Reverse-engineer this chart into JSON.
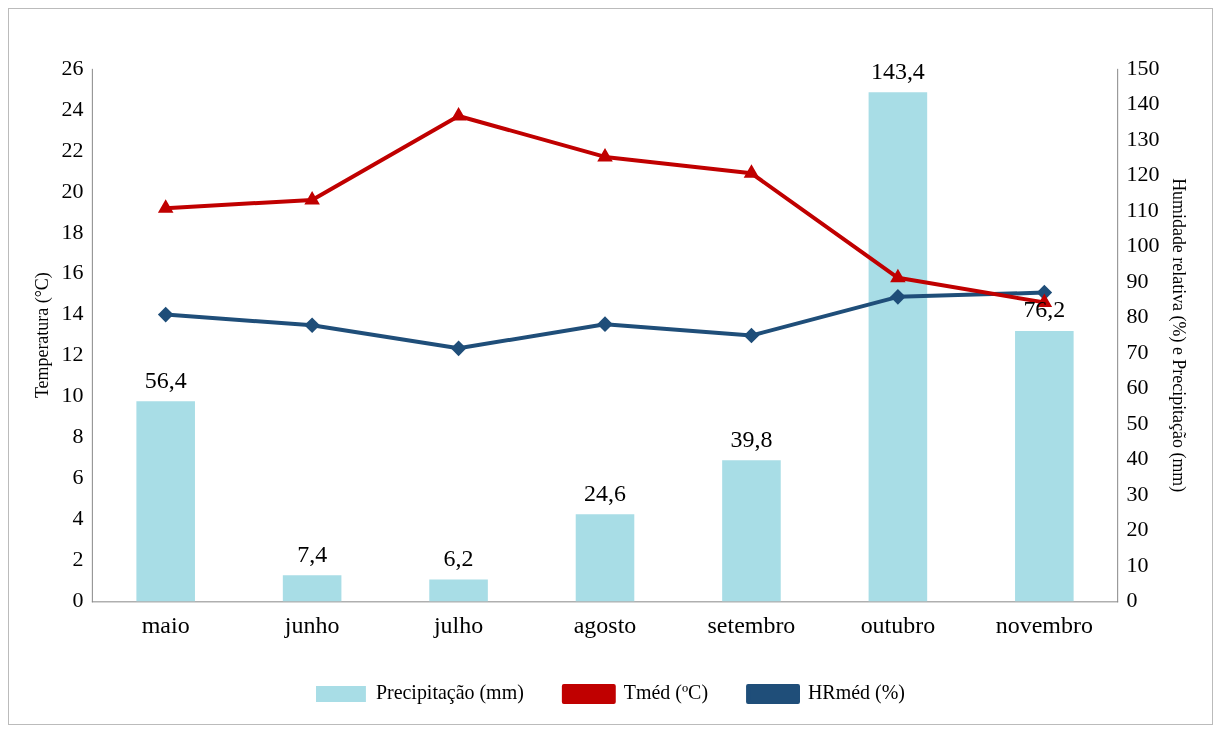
{
  "chart_data": {
    "type": "bar",
    "ylabel": "Temperatura (°C)",
    "y2label": "Humidade relativa (%) e Precipitação (mm)",
    "categories": [
      "maio",
      "junho",
      "julho",
      "agosto",
      "setembro",
      "outubro",
      "novembro"
    ],
    "series": [
      {
        "name": "Precipitação (mm)",
        "axis": "y2",
        "color": "#a8dde6",
        "values": [
          56.4,
          7.4,
          6.2,
          24.6,
          39.8,
          143.4,
          76.2
        ],
        "value_labels": [
          "56,4",
          "7,4",
          "6,2",
          "24,6",
          "39,8",
          "143,4",
          "76,2"
        ]
      },
      {
        "name": "Tméd (ºC)",
        "type": "line",
        "color": "#c00000",
        "marker": "triangle",
        "values": [
          19.2,
          19.6,
          23.7,
          21.7,
          20.9,
          15.8,
          14.6
        ]
      },
      {
        "name": "HRméd (%)",
        "type": "line",
        "axis": "y2",
        "color": "#1f4e79",
        "marker": "diamond",
        "values": [
          80.8,
          77.8,
          71.3,
          78.1,
          74.9,
          85.8,
          87.0
        ]
      }
    ],
    "ylim": [
      0,
      26
    ],
    "yticks": [
      0,
      2,
      4,
      6,
      8,
      10,
      12,
      14,
      16,
      18,
      20,
      22,
      24,
      26
    ],
    "y2lim": [
      0,
      150
    ],
    "y2ticks": [
      0,
      10,
      20,
      30,
      40,
      50,
      60,
      70,
      80,
      90,
      100,
      110,
      120,
      130,
      140,
      150
    ],
    "grid": false,
    "legend": "bottom"
  }
}
